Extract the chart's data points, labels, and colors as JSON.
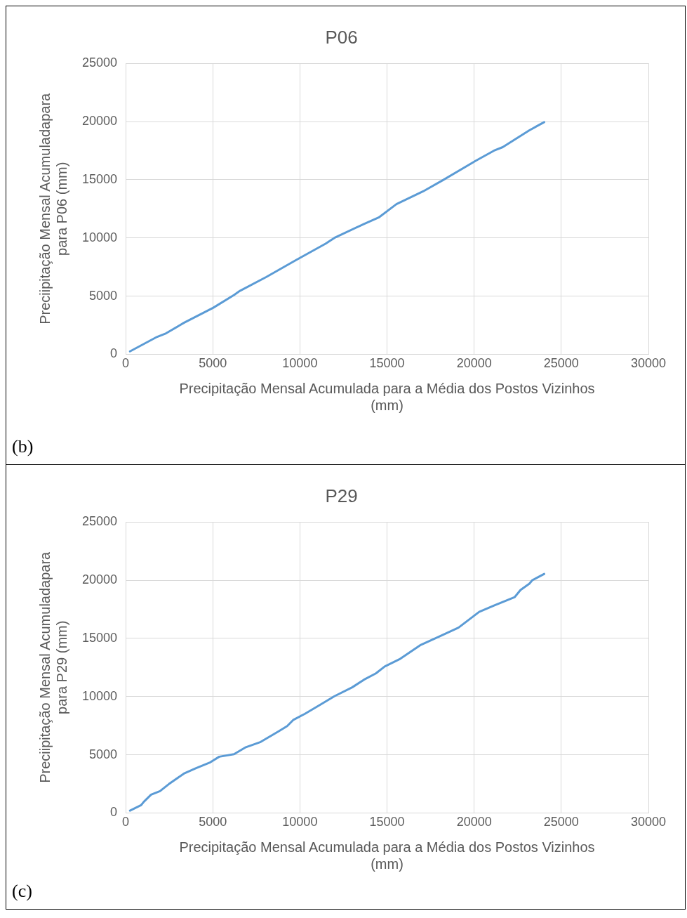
{
  "chart_data": [
    {
      "type": "line",
      "title": "P06",
      "xlabel": "Precipitação Mensal Acumulada para a Média dos Postos Vizinhos\n(mm)",
      "ylabel": "Preciipitação Mensal Acumuladapara\npara P06 (mm)",
      "annotations": [
        "(b)"
      ],
      "x": [
        250,
        1810,
        2320,
        3340,
        5030,
        6220,
        6560,
        8080,
        9780,
        11470,
        11980,
        13680,
        14520,
        15540,
        17070,
        18250,
        20120,
        21140,
        21640,
        23170,
        24020
      ],
      "series": [
        {
          "color": "#5b9bd5",
          "values": [
            250,
            1500,
            1800,
            2700,
            4000,
            5100,
            5450,
            6650,
            8100,
            9500,
            10000,
            11200,
            11750,
            12900,
            14000,
            15000,
            16650,
            17500,
            17800,
            19250,
            19950
          ]
        }
      ],
      "xlim": [
        0,
        30000
      ],
      "xticks": [
        0,
        5000,
        10000,
        15000,
        20000,
        25000,
        30000
      ],
      "ylim": [
        0,
        25000
      ],
      "yticks": [
        0,
        5000,
        10000,
        15000,
        20000,
        25000
      ],
      "grid": true,
      "legend": false,
      "marker": "none",
      "line_style": "solid"
    },
    {
      "type": "line",
      "title": "P29",
      "xlabel": "Precipitação Mensal Acumulada para a Média dos Postos Vizinhos\n(mm)",
      "ylabel": "Preciipitação Mensal Acumuladapara\npara P29 (mm)",
      "annotations": [
        "(c)"
      ],
      "x": [
        250,
        880,
        1050,
        1460,
        1970,
        2480,
        3340,
        4020,
        4860,
        5370,
        6220,
        6900,
        7750,
        8760,
        9270,
        9610,
        10290,
        11140,
        11980,
        13000,
        13680,
        14360,
        14870,
        15710,
        16900,
        17920,
        19100,
        20290,
        21140,
        22330,
        22660,
        23170,
        23340,
        24020
      ],
      "series": [
        {
          "color": "#5b9bd5",
          "values": [
            200,
            660,
            970,
            1570,
            1870,
            2480,
            3380,
            3840,
            4350,
            4830,
            5050,
            5650,
            6100,
            7000,
            7460,
            7980,
            8520,
            9270,
            10030,
            10790,
            11450,
            11990,
            12590,
            13200,
            14410,
            15110,
            15920,
            17280,
            17820,
            18550,
            19160,
            19700,
            20000,
            20540
          ]
        }
      ],
      "xlim": [
        0,
        30000
      ],
      "xticks": [
        0,
        5000,
        10000,
        15000,
        20000,
        25000,
        30000
      ],
      "ylim": [
        0,
        25000
      ],
      "yticks": [
        0,
        5000,
        10000,
        15000,
        20000,
        25000
      ],
      "grid": true,
      "legend": false,
      "marker": "none",
      "line_style": "solid"
    }
  ]
}
